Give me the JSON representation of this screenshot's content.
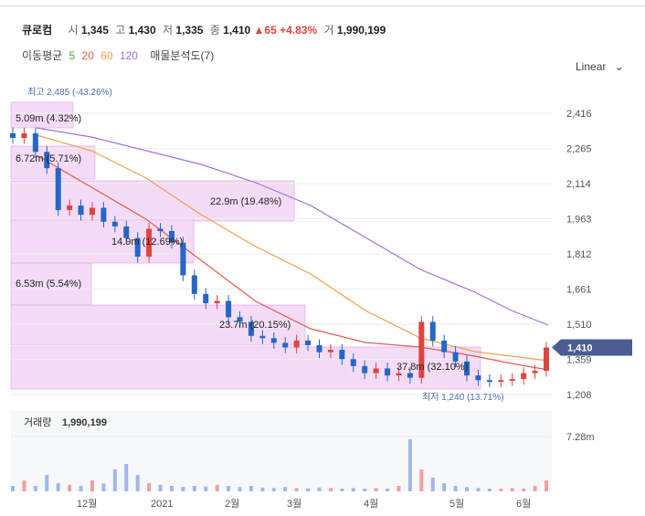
{
  "header": {
    "name": "큐로컴",
    "open_label": "시",
    "open": "1,345",
    "high_label": "고",
    "high": "1,430",
    "low_label": "저",
    "low": "1,335",
    "close_label": "종",
    "close": "1,410",
    "change": "▲65",
    "change_pct": "+4.83%",
    "volume_label": "거",
    "volume": "1,990,199"
  },
  "moving_avg": {
    "label": "이동평균",
    "periods": [
      "5",
      "20",
      "60",
      "120"
    ],
    "colors": [
      "#3aa34a",
      "#e8584a",
      "#f0a04a",
      "#a370e0"
    ],
    "profile_label": "매물분석도(7)"
  },
  "scale_label": "Linear",
  "colors": {
    "up": "#e2433f",
    "down": "#2566c8",
    "profile": "#f3d6f6",
    "current_tag": "#4a5c92"
  },
  "chart_data": {
    "type": "candlestick",
    "y_ticks": [
      "2,416",
      "2,265",
      "2,114",
      "1,963",
      "1,812",
      "1,661",
      "1,510",
      "1,359",
      "1,208"
    ],
    "ylim": [
      1208,
      2416
    ],
    "x_ticks": [
      "12월",
      "2021",
      "2월",
      "3월",
      "4월",
      "5월",
      "6월"
    ],
    "current_price": "1,410",
    "max_label": "최고 2,485 (-43.26%)",
    "min_label": "최저 1,240 (13.71%)",
    "volume_title": "거래량",
    "volume_value": "1,990,199",
    "volume_tick": "7.28m",
    "price_profile": [
      {
        "label": "5.09m (4.32%)"
      },
      {
        "label": "6.72m (5.71%)"
      },
      {
        "label": "22.9m (19.48%)"
      },
      {
        "label": "14.9m (12.69%)"
      },
      {
        "label": "6.53m (5.54%)"
      },
      {
        "label": "23.7m (20.15%)"
      },
      {
        "label": "37.8m (32.10%)"
      }
    ],
    "close_path": [
      2310,
      2330,
      2250,
      2180,
      2000,
      2020,
      1980,
      2010,
      1950,
      1930,
      1880,
      1800,
      1920,
      1910,
      1860,
      1720,
      1640,
      1600,
      1610,
      1540,
      1520,
      1460,
      1450,
      1430,
      1410,
      1440,
      1420,
      1390,
      1400,
      1360,
      1330,
      1300,
      1320,
      1290,
      1300,
      1280,
      1520,
      1440,
      1390,
      1350,
      1290,
      1270,
      1265,
      1270,
      1275,
      1300,
      1310,
      1410
    ]
  }
}
